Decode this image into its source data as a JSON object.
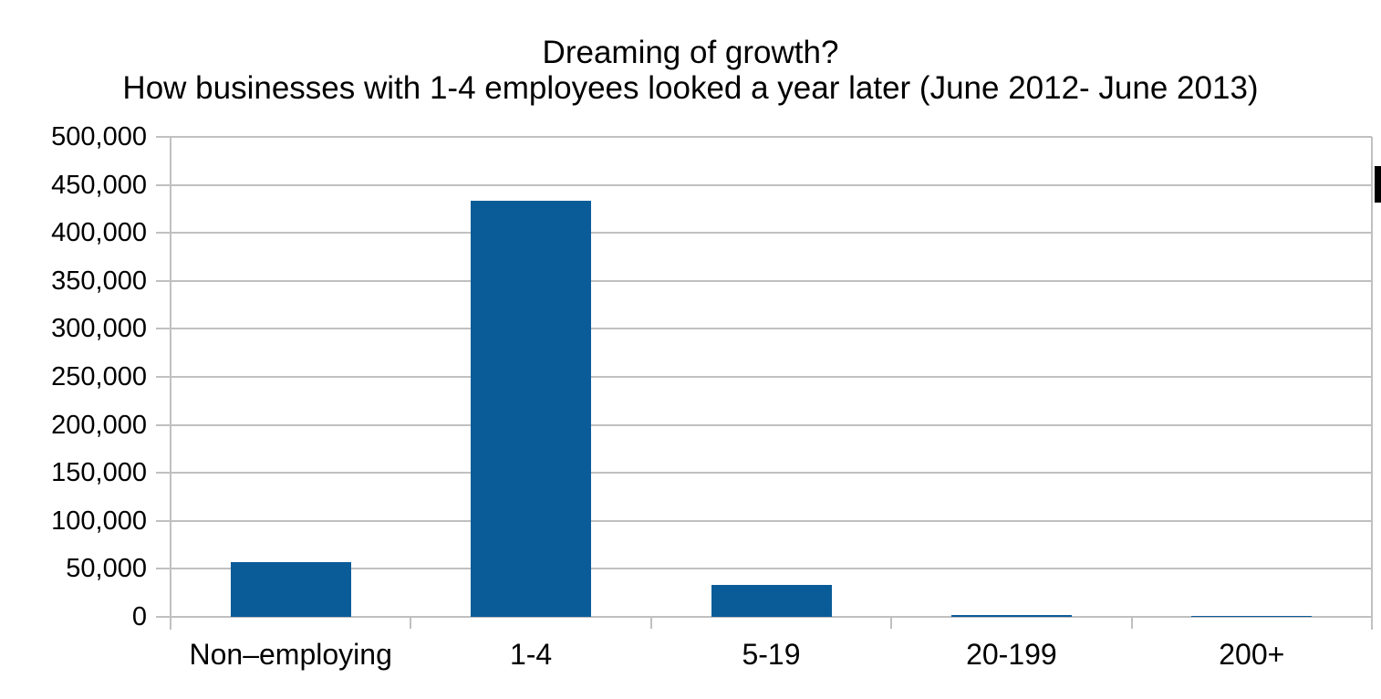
{
  "title": {
    "line1": "Dreaming of growth?",
    "line2": "How businesses with 1-4 employees looked a year later (June 2012- June 2013)"
  },
  "chart_data": {
    "type": "bar",
    "title": "Dreaming of growth? How businesses with 1-4 employees looked a year later (June 2012- June 2013)",
    "categories": [
      "Non–employing",
      "1-4",
      "5-19",
      "20-199",
      "200+"
    ],
    "values": [
      57000,
      433000,
      33000,
      2000,
      500
    ],
    "xlabel": "",
    "ylabel": "",
    "ylim": [
      0,
      500000
    ],
    "ytick_interval": 50000,
    "ytick_labels": [
      "0",
      "50,000",
      "100,000",
      "150,000",
      "200,000",
      "250,000",
      "300,000",
      "350,000",
      "400,000",
      "450,000",
      "500,000"
    ],
    "grid": true,
    "legend_position": "none",
    "bar_color": "#0a5c99",
    "grid_color": "#c0c0c0",
    "background_color": "#ffffff",
    "notes": "partially clipped black legend marker at right edge of image"
  }
}
